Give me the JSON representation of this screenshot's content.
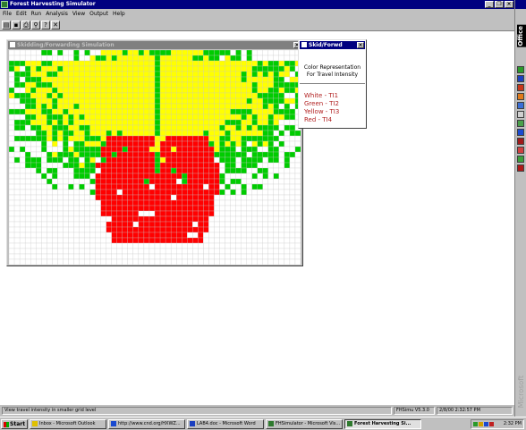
{
  "app": {
    "title": "Forest Harvesting Simulator",
    "menu": [
      "File",
      "Edit",
      "Run",
      "Analysis",
      "View",
      "Output",
      "Help"
    ],
    "toolbar_icons": [
      "open-icon",
      "save-icon",
      "print-icon",
      "find-icon",
      "help-icon",
      "close-icon"
    ],
    "toolbar_glyphs": [
      "▤",
      "▪",
      "⎙",
      "⚲",
      "?",
      "✕"
    ]
  },
  "sim_window": {
    "title": "Skidding/Forwarding Simulation",
    "close_glyph": "×"
  },
  "legend_window": {
    "title": "Skid/Forwd",
    "close_glyph": "×",
    "heading_line1": "Color Representation",
    "heading_line2": "For Travel Intensity",
    "entries": [
      "White - TI1",
      "Green - TI2",
      "Yellow - TI3",
      "Red - TI4"
    ]
  },
  "intensity_colors": {
    "TI1": "#ffffff",
    "TI2": "#00cc00",
    "TI3": "#ffff00",
    "TI4": "#ff0000",
    "grid_line": "#c8c8c8"
  },
  "status": {
    "message": "View travel intensity in smaller grid level",
    "version": "FHSimu V5.3.0",
    "datetime": "2/8/00 2:32:57 PM"
  },
  "office_bar": {
    "label": "Office",
    "brand": "Microsoft"
  },
  "taskbar": {
    "start": "Start",
    "items": [
      "Inbox - Microsoft Outlook",
      "http://www.cnd.org/HXWZ...",
      "LAB4.doc - Microsoft Word",
      "FHSimulator - Microsoft Vis...",
      "Forest Harvesting Si..."
    ],
    "clock": "2:32 PM"
  }
}
